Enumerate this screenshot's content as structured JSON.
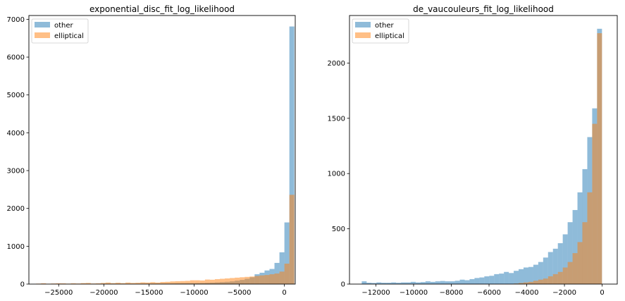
{
  "chart_data": [
    {
      "type": "bar",
      "title": "exponential_disc_fit_log_likelihood",
      "xlim": [
        -28300,
        1200
      ],
      "ylim": [
        0,
        7100
      ],
      "xticks": [
        -25000,
        -20000,
        -15000,
        -10000,
        -5000,
        0
      ],
      "xtick_labels": [
        "−25000",
        "−20000",
        "−15000",
        "−10000",
        "−5000",
        "0"
      ],
      "yticks": [
        0,
        1000,
        2000,
        3000,
        4000,
        5000,
        6000,
        7000
      ],
      "ytick_labels": [
        "0",
        "1000",
        "2000",
        "3000",
        "4000",
        "5000",
        "6000",
        "7000"
      ],
      "legend": {
        "placement": "upper-left"
      },
      "series": [
        {
          "name": "other",
          "color": "#1f77b4",
          "alpha": 0.5,
          "x_start": -27500,
          "bin_width": 550,
          "values": [
            3,
            3,
            3,
            3,
            3,
            3,
            4,
            4,
            4,
            4,
            5,
            5,
            5,
            5,
            6,
            6,
            6,
            7,
            7,
            8,
            9,
            10,
            10,
            11,
            12,
            13,
            14,
            16,
            18,
            20,
            22,
            24,
            26,
            28,
            32,
            38,
            45,
            52,
            60,
            72,
            90,
            110,
            140,
            180,
            260,
            300,
            360,
            400,
            560,
            840,
            1630,
            6810
          ]
        },
        {
          "name": "elliptical",
          "color": "#ff7f0e",
          "alpha": 0.5,
          "x_start": -27500,
          "bin_width": 550,
          "values": [
            12,
            20,
            10,
            15,
            20,
            18,
            12,
            20,
            15,
            25,
            30,
            15,
            20,
            30,
            40,
            25,
            35,
            25,
            40,
            30,
            35,
            45,
            40,
            50,
            40,
            55,
            60,
            70,
            75,
            80,
            85,
            100,
            100,
            95,
            120,
            115,
            130,
            140,
            150,
            160,
            170,
            180,
            190,
            200,
            215,
            230,
            240,
            260,
            280,
            330,
            540,
            2360
          ]
        }
      ]
    },
    {
      "type": "bar",
      "title": "de_vaucouleurs_fit_log_likelihood",
      "xlim": [
        -13400,
        800
      ],
      "ylim": [
        0,
        2430
      ],
      "xticks": [
        -12000,
        -10000,
        -8000,
        -6000,
        -4000,
        -2000,
        0
      ],
      "xtick_labels": [
        "−12000",
        "−10000",
        "−8000",
        "−6000",
        "−4000",
        "−2000",
        "0"
      ],
      "yticks": [
        0,
        500,
        1000,
        1500,
        2000
      ],
      "ytick_labels": [
        "0",
        "500",
        "1000",
        "1500",
        "2000"
      ],
      "legend": {
        "placement": "upper-left"
      },
      "series": [
        {
          "name": "other",
          "color": "#1f77b4",
          "alpha": 0.5,
          "x_start": -12750,
          "bin_width": 260,
          "values": [
            25,
            12,
            10,
            15,
            12,
            12,
            15,
            12,
            15,
            15,
            20,
            15,
            18,
            25,
            20,
            25,
            28,
            25,
            25,
            30,
            40,
            35,
            45,
            55,
            60,
            70,
            75,
            90,
            95,
            110,
            100,
            120,
            135,
            150,
            155,
            175,
            200,
            240,
            290,
            320,
            370,
            450,
            560,
            670,
            830,
            1040,
            1330,
            1590,
            2310
          ]
        },
        {
          "name": "elliptical",
          "color": "#ff7f0e",
          "alpha": 0.5,
          "x_start": -12750,
          "bin_width": 260,
          "values": [
            0,
            0,
            0,
            0,
            0,
            0,
            0,
            0,
            0,
            0,
            0,
            0,
            0,
            0,
            0,
            0,
            0,
            0,
            0,
            0,
            0,
            0,
            0,
            0,
            0,
            0,
            0,
            0,
            0,
            0,
            0,
            5,
            10,
            15,
            20,
            30,
            40,
            50,
            70,
            90,
            110,
            150,
            200,
            280,
            380,
            560,
            830,
            1450,
            2270
          ]
        }
      ]
    }
  ]
}
